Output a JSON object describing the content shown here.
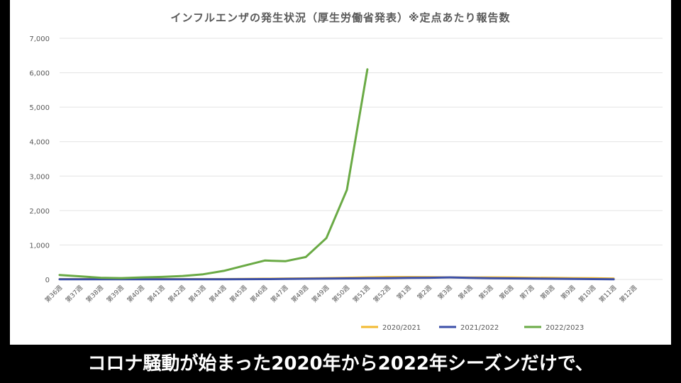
{
  "subtitle": "コロナ騒動が始まった2020年から2022年シーズンだけで、",
  "chart_data": {
    "type": "line",
    "title": "インフルエンザの発生状況（厚生労働省発表）※定点あたり報告数",
    "xlabel": "",
    "ylabel": "",
    "ylim": [
      0,
      7000
    ],
    "yticks": [
      "0",
      "1,000",
      "2,000",
      "3,000",
      "4,000",
      "5,000",
      "6,000",
      "7,000"
    ],
    "ytick_values": [
      0,
      1000,
      2000,
      3000,
      4000,
      5000,
      6000,
      7000
    ],
    "grid": true,
    "legend_position": "bottom-right",
    "categories": [
      "第36週",
      "第37週",
      "第38週",
      "第39週",
      "第40週",
      "第41週",
      "第42週",
      "第43週",
      "第44週",
      "第45週",
      "第46週",
      "第47週",
      "第48週",
      "第49週",
      "第50週",
      "第51週",
      "第52週",
      "第1週",
      "第2週",
      "第3週",
      "第4週",
      "第5週",
      "第6週",
      "第7週",
      "第8週",
      "第9週",
      "第10週",
      "第11週",
      "第12週"
    ],
    "series": [
      {
        "name": "2020/2021",
        "color": "#f2b92f",
        "values": [
          10,
          10,
          10,
          10,
          10,
          10,
          10,
          10,
          10,
          15,
          20,
          25,
          30,
          40,
          50,
          60,
          70,
          70,
          65,
          60,
          55,
          60,
          55,
          50,
          45,
          40,
          35,
          25,
          null
        ]
      },
      {
        "name": "2021/2022",
        "color": "#3b4fa8",
        "values": [
          5,
          5,
          5,
          5,
          5,
          5,
          5,
          5,
          5,
          8,
          10,
          15,
          20,
          25,
          30,
          35,
          40,
          45,
          50,
          60,
          45,
          35,
          30,
          25,
          20,
          15,
          10,
          5,
          null
        ]
      },
      {
        "name": "2022/2023",
        "color": "#6aaa45",
        "values": [
          130,
          90,
          50,
          40,
          60,
          75,
          100,
          150,
          250,
          400,
          550,
          530,
          650,
          1200,
          2600,
          6100,
          null,
          null,
          null,
          null,
          null,
          null,
          null,
          null,
          null,
          null,
          null,
          null,
          null
        ]
      }
    ]
  }
}
